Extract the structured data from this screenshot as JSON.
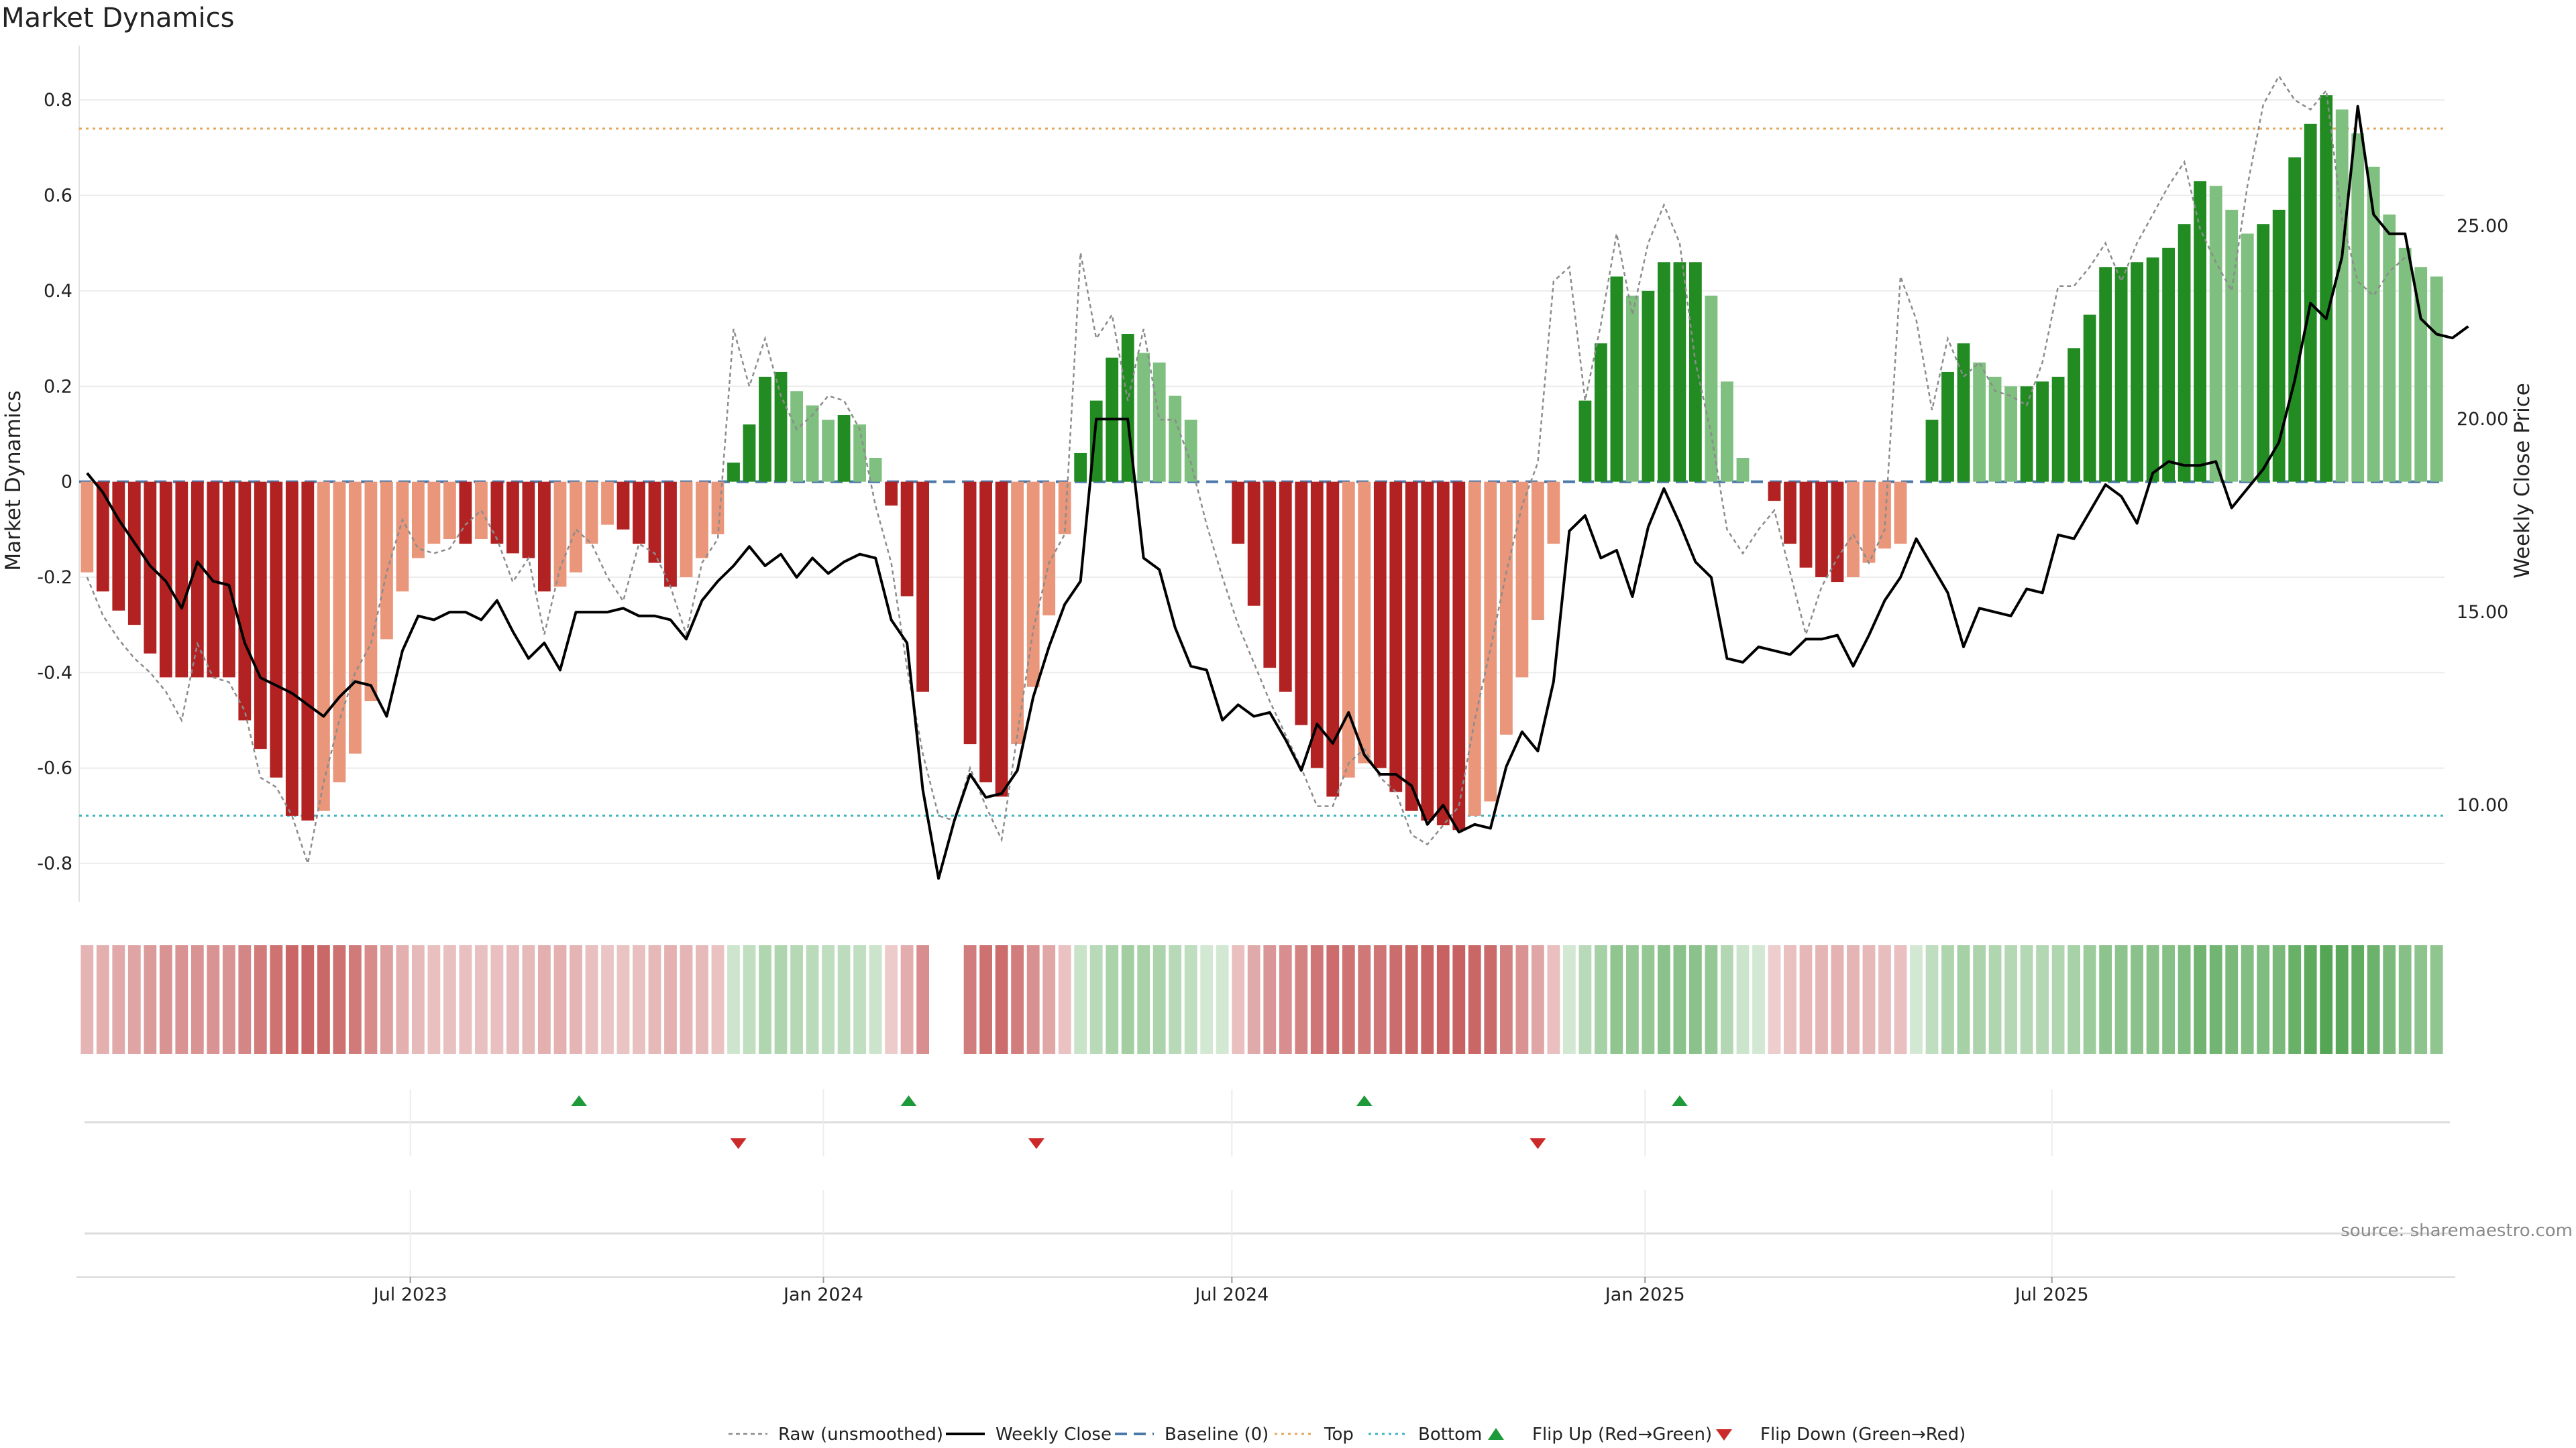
{
  "chart_data": {
    "type": "bar",
    "title": "Market Dynamics",
    "ylabel": "Market Dynamics",
    "y2label": "Weekly Close Price",
    "source": "source: sharemaestro.com",
    "ylim": [
      -0.88,
      0.9
    ],
    "y2lim": [
      7.5,
      29.5
    ],
    "yticks": [
      {
        "v": 0.8,
        "label": "0.8"
      },
      {
        "v": 0.6,
        "label": "0.6"
      },
      {
        "v": 0.4,
        "label": "0.4"
      },
      {
        "v": 0.2,
        "label": "0.2"
      },
      {
        "v": 0,
        "label": "0"
      },
      {
        "v": -0.2,
        "label": "-0.2"
      },
      {
        "v": -0.4,
        "label": "-0.4"
      },
      {
        "v": -0.6,
        "label": "-0.6"
      },
      {
        "v": -0.8,
        "label": "-0.8"
      }
    ],
    "y2ticks": [
      {
        "v": 25,
        "label": "25.00"
      },
      {
        "v": 20,
        "label": "20.00"
      },
      {
        "v": 15,
        "label": "15.00"
      },
      {
        "v": 10,
        "label": "10.00"
      }
    ],
    "xticks": [
      {
        "label": "Jul 2023",
        "week": 29.5
      },
      {
        "label": "Jan 2024",
        "week": 55.7
      },
      {
        "label": "Jul 2024",
        "week": 81.6
      },
      {
        "label": "Jan 2025",
        "week": 107.8
      },
      {
        "label": "Jul 2025",
        "week": 133.6
      }
    ],
    "top_line": 0.74,
    "bottom_line": -0.7,
    "legend": [
      {
        "key": "raw",
        "label": "Raw (unsmoothed)"
      },
      {
        "key": "close",
        "label": "Weekly Close"
      },
      {
        "key": "baseline",
        "label": "Baseline (0)"
      },
      {
        "key": "top",
        "label": "Top"
      },
      {
        "key": "bottom",
        "label": "Bottom"
      },
      {
        "key": "flipup",
        "label": "Flip Up (Red→Green)"
      },
      {
        "key": "flipdown",
        "label": "Flip Down (Green→Red)"
      }
    ],
    "colors": {
      "strong_neg": "#b22222",
      "weak_neg": "#e9967a",
      "strong_pos": "#228b22",
      "weak_pos": "#7fbf7f",
      "raw": "#8c8c8c",
      "close": "#000000",
      "baseline": "#4a78a8",
      "top": "#e2a85e",
      "bottom": "#3bb4c4",
      "flip_up": "#1f9a3a",
      "flip_down": "#cc2a2a"
    },
    "flip_up_weeks": [
      40.2,
      61.1,
      90.0,
      110.0
    ],
    "flip_down_weeks": [
      50.3,
      69.2,
      101.0
    ],
    "week_offset": 9,
    "series": [
      {
        "name": "Market Dynamics",
        "values": [
          -0.19,
          -0.23,
          -0.27,
          -0.3,
          -0.36,
          -0.41,
          -0.41,
          -0.41,
          -0.41,
          -0.41,
          -0.5,
          -0.56,
          -0.62,
          -0.7,
          -0.71,
          -0.69,
          -0.63,
          -0.57,
          -0.46,
          -0.33,
          -0.23,
          -0.16,
          -0.13,
          -0.12,
          -0.13,
          -0.12,
          -0.13,
          -0.15,
          -0.16,
          -0.23,
          -0.22,
          -0.19,
          -0.13,
          -0.09,
          -0.1,
          -0.13,
          -0.17,
          -0.22,
          -0.2,
          -0.16,
          -0.11,
          0.04,
          0.12,
          0.22,
          0.23,
          0.19,
          0.16,
          0.13,
          0.14,
          0.12,
          0.05,
          -0.05,
          -0.24,
          -0.44,
          0,
          0,
          -0.55,
          -0.63,
          -0.66,
          -0.55,
          -0.43,
          -0.28,
          -0.11,
          0.06,
          0.17,
          0.26,
          0.31,
          0.27,
          0.25,
          0.18,
          0.13,
          0,
          0,
          -0.13,
          -0.26,
          -0.39,
          -0.44,
          -0.51,
          -0.6,
          -0.66,
          -0.62,
          -0.59,
          -0.6,
          -0.65,
          -0.69,
          -0.71,
          -0.72,
          -0.73,
          -0.7,
          -0.67,
          -0.53,
          -0.41,
          -0.29,
          -0.13,
          0,
          0.17,
          0.29,
          0.43,
          0.39,
          0.4,
          0.46,
          0.46,
          0.46,
          0.39,
          0.21,
          0.05,
          0,
          -0.04,
          -0.13,
          -0.18,
          -0.2,
          -0.21,
          -0.2,
          -0.17,
          -0.14,
          -0.13,
          0,
          0.13,
          0.23,
          0.29,
          0.25,
          0.22,
          0.2,
          0.2,
          0.21,
          0.22,
          0.28,
          0.35,
          0.45,
          0.45,
          0.46,
          0.47,
          0.49,
          0.54,
          0.63,
          0.62,
          0.57,
          0.52,
          0.54,
          0.57,
          0.68,
          0.75,
          0.81,
          0.78,
          0.73,
          0.66,
          0.56,
          0.49,
          0.45,
          0.43
        ]
      },
      {
        "name": "Raw (unsmoothed)",
        "values": [
          -0.2,
          -0.28,
          -0.33,
          -0.37,
          -0.4,
          -0.44,
          -0.5,
          -0.34,
          -0.41,
          -0.42,
          -0.48,
          -0.62,
          -0.64,
          -0.7,
          -0.8,
          -0.63,
          -0.5,
          -0.4,
          -0.34,
          -0.19,
          -0.08,
          -0.14,
          -0.15,
          -0.14,
          -0.09,
          -0.06,
          -0.12,
          -0.21,
          -0.16,
          -0.32,
          -0.18,
          -0.1,
          -0.13,
          -0.2,
          -0.25,
          -0.13,
          -0.15,
          -0.22,
          -0.32,
          -0.17,
          -0.12,
          0.32,
          0.2,
          0.3,
          0.18,
          0.11,
          0.14,
          0.18,
          0.17,
          0.11,
          -0.05,
          -0.17,
          -0.39,
          -0.57,
          -0.7,
          -0.71,
          -0.6,
          -0.68,
          -0.75,
          -0.53,
          -0.31,
          -0.17,
          -0.11,
          0.48,
          0.3,
          0.35,
          0.17,
          0.32,
          0.13,
          0.13,
          0.04,
          -0.09,
          -0.2,
          -0.3,
          -0.38,
          -0.46,
          -0.53,
          -0.6,
          -0.68,
          -0.68,
          -0.59,
          -0.56,
          -0.62,
          -0.65,
          -0.74,
          -0.76,
          -0.72,
          -0.68,
          -0.5,
          -0.35,
          -0.19,
          -0.05,
          0.04,
          0.42,
          0.45,
          0.17,
          0.33,
          0.52,
          0.35,
          0.5,
          0.58,
          0.5,
          0.25,
          0.1,
          -0.1,
          -0.15,
          -0.1,
          -0.06,
          -0.19,
          -0.32,
          -0.22,
          -0.16,
          -0.11,
          -0.17,
          -0.1,
          0.43,
          0.34,
          0.15,
          0.3,
          0.22,
          0.25,
          0.19,
          0.18,
          0.16,
          0.25,
          0.41,
          0.41,
          0.45,
          0.5,
          0.42,
          0.5,
          0.56,
          0.62,
          0.67,
          0.53,
          0.46,
          0.4,
          0.62,
          0.79,
          0.85,
          0.8,
          0.78,
          0.82,
          0.55,
          0.42,
          0.39,
          0.44,
          0.47
        ]
      },
      {
        "name": "Weekly Close",
        "values": [
          18.6,
          18.1,
          17.4,
          16.8,
          16.2,
          15.8,
          15.1,
          16.3,
          15.8,
          15.7,
          14.2,
          13.3,
          13.1,
          12.9,
          12.6,
          12.3,
          12.8,
          13.2,
          13.1,
          12.3,
          14,
          14.9,
          14.8,
          15,
          15,
          14.8,
          15.3,
          14.5,
          13.8,
          14.2,
          13.5,
          15,
          15,
          15,
          15.1,
          14.9,
          14.9,
          14.8,
          14.3,
          15.3,
          15.8,
          16.2,
          16.7,
          16.2,
          16.5,
          15.9,
          16.4,
          16,
          16.3,
          16.5,
          16.4,
          14.8,
          14.2,
          10.4,
          8.1,
          9.6,
          10.8,
          10.2,
          10.3,
          10.9,
          12.8,
          14.1,
          15.2,
          15.8,
          20,
          20,
          20,
          16.4,
          16.1,
          14.6,
          13.6,
          13.5,
          12.2,
          12.6,
          12.3,
          12.4,
          11.7,
          10.9,
          12.1,
          11.6,
          12.4,
          11.3,
          10.8,
          10.8,
          10.5,
          9.5,
          10,
          9.3,
          9.5,
          9.4,
          11,
          11.9,
          11.4,
          13.2,
          17.1,
          17.5,
          16.4,
          16.6,
          15.4,
          17.2,
          18.2,
          17.3,
          16.3,
          15.9,
          13.8,
          13.7,
          14.1,
          14,
          13.9,
          14.3,
          14.3,
          14.4,
          13.6,
          14.4,
          15.3,
          15.9,
          16.9,
          16.2,
          15.5,
          14.1,
          15.1,
          15,
          14.9,
          15.6,
          15.5,
          17,
          16.9,
          17.6,
          18.3,
          18,
          17.3,
          18.6,
          18.9,
          18.8,
          18.8,
          18.9,
          17.7,
          18.2,
          18.7,
          19.4,
          21,
          23,
          22.6,
          24.2,
          28.1,
          25.3,
          24.8,
          24.8,
          22.6,
          22.2,
          22.1,
          22.4
        ]
      }
    ]
  }
}
